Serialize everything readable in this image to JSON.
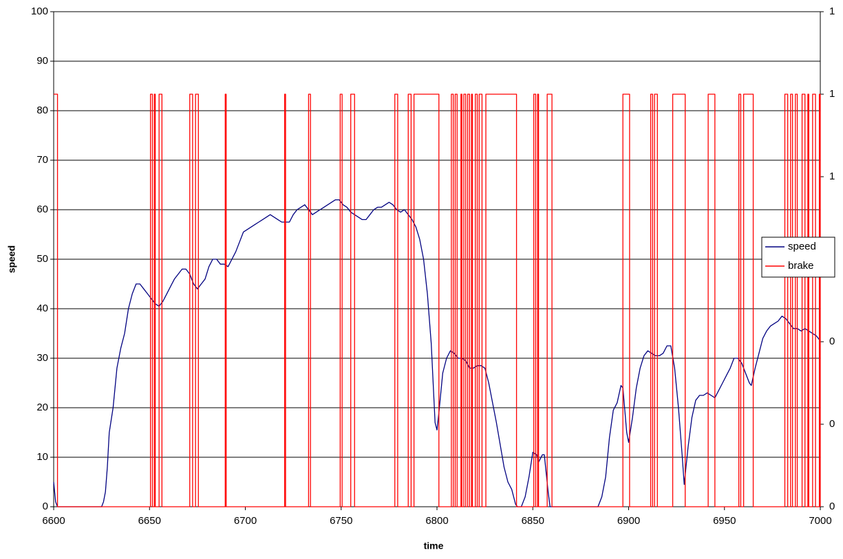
{
  "chart_data": {
    "type": "line",
    "x_label": "time",
    "y_label": "speed",
    "xlim": [
      6600,
      7000
    ],
    "xticks": [
      6600,
      6650,
      6700,
      6750,
      6800,
      6850,
      6900,
      6950,
      7000
    ],
    "ylim": [
      0,
      100
    ],
    "yticks": [
      0,
      10,
      20,
      30,
      40,
      50,
      60,
      70,
      80,
      90,
      100
    ],
    "y2lim": [
      0,
      1.2
    ],
    "y2ticks": [
      {
        "value": 0,
        "label": "0"
      },
      {
        "value": 0.2,
        "label": "0"
      },
      {
        "value": 0.4,
        "label": "0"
      },
      {
        "value": 0.6,
        "label": "1"
      },
      {
        "value": 0.8,
        "label": "1"
      },
      {
        "value": 1.0,
        "label": "1"
      },
      {
        "value": 1.2,
        "label": "1"
      }
    ],
    "grid": true,
    "legend": "right",
    "series": [
      {
        "name": "speed",
        "color": "#000080",
        "x": [
          6600,
          6601,
          6602,
          6625,
          6626,
          6627,
          6628,
          6629,
          6631,
          6633,
          6635,
          6637,
          6639,
          6641,
          6643,
          6645,
          6647,
          6649,
          6651,
          6653,
          6655,
          6657,
          6659,
          6661,
          6663,
          6665,
          6667,
          6669,
          6671,
          6673,
          6675,
          6677,
          6679,
          6681,
          6683,
          6685,
          6687,
          6689,
          6691,
          6693,
          6695,
          6697,
          6699,
          6701,
          6703,
          6705,
          6707,
          6709,
          6711,
          6713,
          6715,
          6717,
          6719,
          6721,
          6723,
          6725,
          6727,
          6729,
          6731,
          6733,
          6735,
          6737,
          6739,
          6741,
          6743,
          6745,
          6747,
          6749,
          6751,
          6753,
          6755,
          6757,
          6759,
          6761,
          6763,
          6765,
          6767,
          6769,
          6771,
          6773,
          6775,
          6777,
          6779,
          6781,
          6783,
          6785,
          6787,
          6789,
          6791,
          6793,
          6795,
          6797,
          6799,
          6800,
          6801,
          6803,
          6805,
          6807,
          6809,
          6811,
          6813,
          6815,
          6817,
          6819,
          6821,
          6823,
          6825,
          6827,
          6829,
          6831,
          6833,
          6835,
          6837,
          6839,
          6841,
          6842,
          6844,
          6846,
          6848,
          6850,
          6852,
          6853,
          6855,
          6856,
          6858,
          6859,
          6884,
          6886,
          6888,
          6890,
          6892,
          6894,
          6896,
          6897,
          6899,
          6900,
          6902,
          6904,
          6906,
          6908,
          6910,
          6912,
          6914,
          6916,
          6918,
          6920,
          6922,
          6924,
          6926,
          6928,
          6929,
          6931,
          6933,
          6935,
          6937,
          6939,
          6941,
          6943,
          6945,
          6947,
          6949,
          6951,
          6953,
          6955,
          6957,
          6959,
          6961,
          6963,
          6964,
          6966,
          6968,
          6970,
          6972,
          6974,
          6976,
          6978,
          6980,
          6982,
          6984,
          6986,
          6988,
          6990,
          6992,
          6994,
          6996,
          6998,
          7000
        ],
        "values": [
          5,
          1,
          0,
          0,
          1,
          3,
          8,
          15,
          20,
          28,
          32,
          35,
          40,
          43,
          45,
          45,
          44,
          43,
          42,
          41,
          40.5,
          41.5,
          43,
          44.5,
          46,
          47,
          48,
          48,
          47,
          45,
          44,
          45,
          46,
          48.5,
          50,
          50,
          49,
          49,
          48.5,
          50,
          51.5,
          53.5,
          55.5,
          56,
          56.5,
          57,
          57.5,
          58,
          58.5,
          59,
          58.5,
          58,
          57.5,
          57.5,
          57.5,
          59,
          60,
          60.5,
          61,
          60,
          59,
          59.5,
          60,
          60.5,
          61,
          61.5,
          62,
          62,
          61,
          60.5,
          59.5,
          59,
          58.5,
          58,
          58,
          59,
          60,
          60.5,
          60.5,
          61,
          61.5,
          61,
          60,
          59.5,
          60,
          59,
          58,
          56.5,
          54,
          50,
          43,
          33,
          17,
          15.5,
          19,
          27,
          30,
          31.5,
          31,
          30,
          30,
          29.5,
          28,
          28,
          28.5,
          28.5,
          28,
          25,
          21,
          17,
          12.5,
          8,
          5,
          3.5,
          0.5,
          0,
          0,
          2,
          6,
          11,
          10.5,
          9,
          10.5,
          10.5,
          3,
          0,
          0,
          2,
          6,
          14,
          19.5,
          21,
          24.5,
          24,
          15,
          13,
          18,
          24,
          28,
          30.5,
          31.5,
          31,
          30.5,
          30.5,
          31,
          32.5,
          32.5,
          28,
          20,
          10,
          4.5,
          12,
          18,
          21.5,
          22.5,
          22.5,
          23,
          22.5,
          22,
          23.5,
          25,
          26.5,
          28,
          30,
          30,
          29,
          27,
          25,
          24.5,
          28,
          31,
          34,
          35.5,
          36.5,
          37,
          37.5,
          38.5,
          38,
          37,
          36,
          36,
          35.5,
          36,
          35.5,
          35,
          34.5,
          33.5
        ]
      },
      {
        "name": "brake",
        "color": "#ff0000",
        "axis": "y2",
        "x": [
          6600,
          6602,
          6602,
          6650.5,
          6650.5,
          6651.5,
          6651.5,
          6652.5,
          6652.5,
          6653,
          6653,
          6655,
          6655,
          6656.5,
          6656.5,
          6671,
          6671,
          6672.5,
          6672.5,
          6674,
          6674,
          6675.5,
          6675.5,
          6689.5,
          6689.5,
          6690,
          6690,
          6720.5,
          6720.5,
          6721,
          6721,
          6733,
          6733,
          6734,
          6734,
          6749.5,
          6749.5,
          6750.5,
          6750.5,
          6755,
          6755,
          6757,
          6757,
          6778,
          6778,
          6779.5,
          6779.5,
          6785,
          6785,
          6786.5,
          6786.5,
          6788,
          6788,
          6801,
          6801,
          6807.5,
          6807.5,
          6808.5,
          6808.5,
          6809.5,
          6809.5,
          6810.5,
          6810.5,
          6812.5,
          6812.5,
          6813,
          6813,
          6814,
          6814,
          6815,
          6815,
          6816,
          6816,
          6817,
          6817,
          6818,
          6818,
          6818.5,
          6818.5,
          6820,
          6820,
          6821,
          6821,
          6822,
          6822,
          6823.5,
          6823.5,
          6825.5,
          6825.5,
          6841.5,
          6841.5,
          6850.5,
          6850.5,
          6851.5,
          6851.5,
          6852.5,
          6852.5,
          6853,
          6853,
          6857.5,
          6857.5,
          6860,
          6860,
          6897,
          6897,
          6900.5,
          6900.5,
          6911.5,
          6911.5,
          6912.5,
          6912.5,
          6913.5,
          6913.5,
          6915,
          6915,
          6923,
          6923,
          6929.5,
          6929.5,
          6941.5,
          6941.5,
          6945,
          6945,
          6957.5,
          6957.5,
          6958.5,
          6958.5,
          6960,
          6960,
          6965,
          6965,
          6981.5,
          6981.5,
          6983,
          6983,
          6984.5,
          6984.5,
          6985.5,
          6985.5,
          6987,
          6987,
          6988,
          6988,
          6990.5,
          6990.5,
          6992,
          6992,
          6993.5,
          6993.5,
          6994,
          6994,
          6996,
          6996,
          6997.5,
          6997.5,
          6999.5,
          6999.5,
          7000,
          7000
        ],
        "values": [
          1,
          1,
          0,
          0,
          1,
          1,
          0,
          0,
          1,
          1,
          0,
          0,
          1,
          1,
          0,
          0,
          1,
          1,
          0,
          0,
          1,
          1,
          0,
          0,
          1,
          1,
          0,
          0,
          1,
          1,
          0,
          0,
          1,
          1,
          0,
          0,
          1,
          1,
          0,
          0,
          1,
          1,
          0,
          0,
          1,
          1,
          0,
          0,
          1,
          1,
          0,
          0,
          1,
          1,
          0,
          0,
          1,
          1,
          0,
          0,
          1,
          1,
          0,
          0,
          1,
          1,
          0,
          0,
          1,
          1,
          0,
          0,
          1,
          1,
          0,
          0,
          1,
          1,
          0,
          0,
          1,
          1,
          0,
          0,
          1,
          1,
          0,
          0,
          1,
          1,
          0,
          0,
          1,
          1,
          0,
          0,
          1,
          1,
          0,
          0,
          1,
          1,
          0,
          0,
          1,
          1,
          0,
          0,
          1,
          1,
          0,
          0,
          1,
          1,
          0,
          0,
          1,
          1,
          0,
          0,
          1,
          1,
          0,
          0,
          1,
          1,
          0,
          0,
          1,
          1,
          0,
          0,
          1,
          1,
          0,
          0,
          1,
          1,
          0,
          0,
          1,
          1,
          0,
          0,
          1,
          1,
          0,
          0,
          1,
          1,
          0,
          0,
          1,
          1,
          0,
          0,
          1,
          1,
          0
        ]
      }
    ]
  }
}
